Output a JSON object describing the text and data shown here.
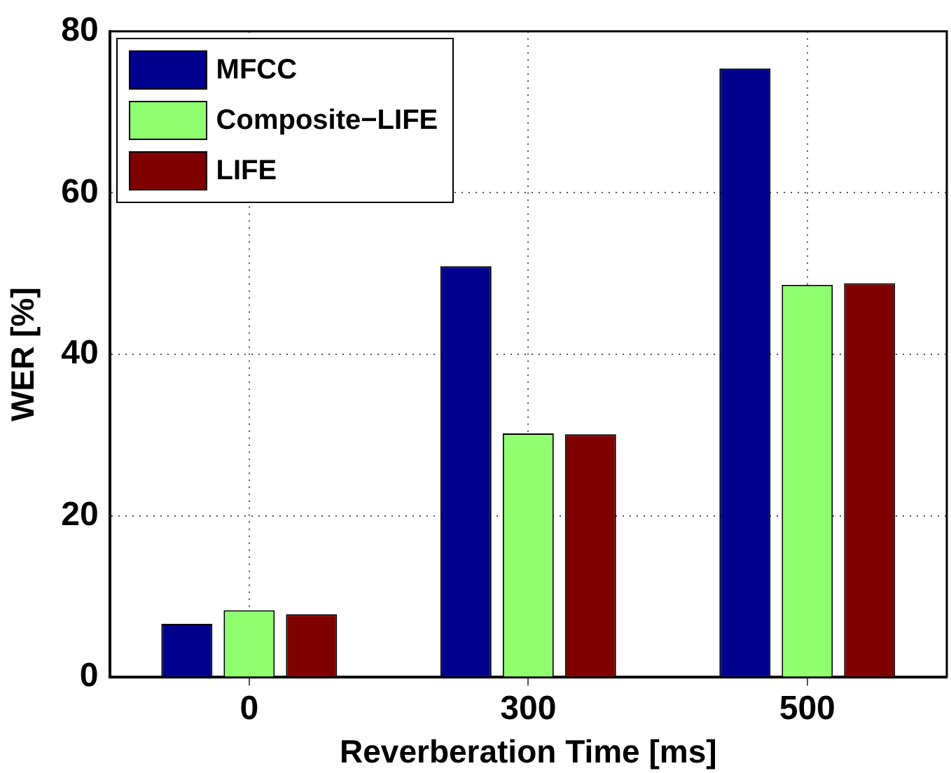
{
  "chart_data": {
    "type": "bar",
    "xlabel": "Reverberation Time [ms]",
    "ylabel": "WER [%]",
    "categories": [
      "0",
      "300",
      "500"
    ],
    "series": [
      {
        "name": "MFCC",
        "color": "#00008f",
        "values": [
          6.6,
          50.9,
          75.4
        ]
      },
      {
        "name": "Composite−LIFE",
        "color": "#8fff70",
        "values": [
          8.3,
          30.2,
          48.6
        ]
      },
      {
        "name": "LIFE",
        "color": "#800000",
        "values": [
          7.8,
          30.1,
          48.8
        ]
      }
    ],
    "ylim": [
      0,
      80
    ],
    "yticks": [
      0,
      20,
      40,
      60,
      80
    ],
    "grid": true,
    "legend": "top left"
  }
}
